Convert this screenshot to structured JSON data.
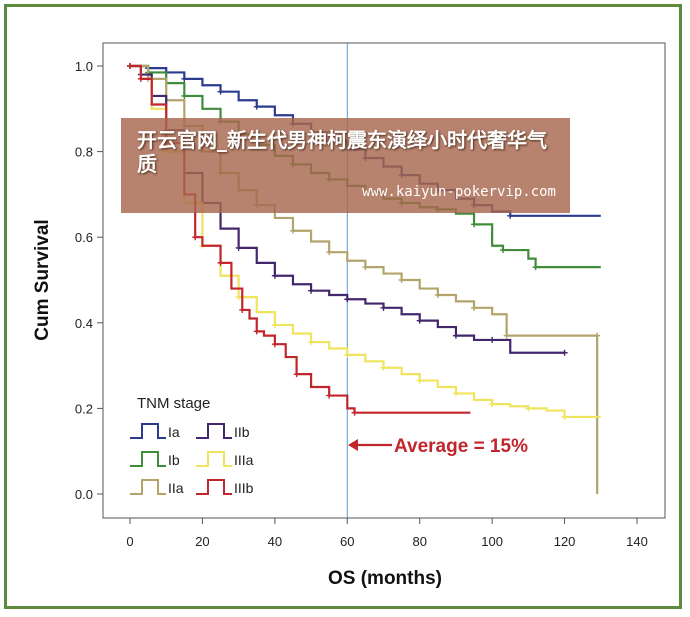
{
  "banner": {
    "title": "开云官网_新生代男神柯震东演绎小时代奢华气质",
    "url": "www.kaiyun-pokervip.com"
  },
  "chart_data": {
    "type": "line",
    "step": true,
    "xlabel": "OS (months)",
    "ylabel": "Cum Survival",
    "xlim": [
      -5,
      145
    ],
    "ylim": [
      0,
      1.0
    ],
    "xticks": [
      0,
      20,
      40,
      60,
      80,
      100,
      120,
      140
    ],
    "yticks": [
      0.0,
      0.2,
      0.4,
      0.6,
      0.8,
      1.0
    ],
    "grid": false,
    "legend": {
      "title": "TNM stage",
      "position": "bottom-left"
    },
    "reference_line": {
      "x": 60,
      "color": "#5b9bd5"
    },
    "annotation": {
      "text": "Average = 15%",
      "x": 60,
      "y": 0.115,
      "color": "#c0262c"
    },
    "series": [
      {
        "name": "Ia",
        "color": "#2b3b8f",
        "points": [
          [
            0,
            1.0
          ],
          [
            5,
            0.995
          ],
          [
            10,
            0.985
          ],
          [
            15,
            0.97
          ],
          [
            20,
            0.955
          ],
          [
            25,
            0.94
          ],
          [
            30,
            0.92
          ],
          [
            35,
            0.905
          ],
          [
            40,
            0.885
          ],
          [
            45,
            0.865
          ],
          [
            50,
            0.845
          ],
          [
            55,
            0.825
          ],
          [
            60,
            0.805
          ],
          [
            65,
            0.785
          ],
          [
            70,
            0.765
          ],
          [
            75,
            0.745
          ],
          [
            80,
            0.725
          ],
          [
            85,
            0.71
          ],
          [
            90,
            0.69
          ],
          [
            95,
            0.675
          ],
          [
            100,
            0.66
          ],
          [
            105,
            0.65
          ],
          [
            130,
            0.65
          ]
        ]
      },
      {
        "name": "Ib",
        "color": "#3f8c3a",
        "points": [
          [
            0,
            1.0
          ],
          [
            5,
            0.985
          ],
          [
            10,
            0.96
          ],
          [
            15,
            0.93
          ],
          [
            20,
            0.9
          ],
          [
            25,
            0.87
          ],
          [
            30,
            0.84
          ],
          [
            35,
            0.815
          ],
          [
            40,
            0.79
          ],
          [
            45,
            0.77
          ],
          [
            50,
            0.75
          ],
          [
            55,
            0.735
          ],
          [
            60,
            0.72
          ],
          [
            65,
            0.705
          ],
          [
            70,
            0.69
          ],
          [
            75,
            0.68
          ],
          [
            80,
            0.67
          ],
          [
            85,
            0.665
          ],
          [
            90,
            0.655
          ],
          [
            95,
            0.63
          ],
          [
            100,
            0.58
          ],
          [
            103,
            0.57
          ],
          [
            110,
            0.55
          ],
          [
            112,
            0.53
          ],
          [
            130,
            0.53
          ]
        ]
      },
      {
        "name": "IIa",
        "color": "#b3a46c",
        "points": [
          [
            0,
            1.0
          ],
          [
            5,
            0.97
          ],
          [
            10,
            0.92
          ],
          [
            15,
            0.86
          ],
          [
            20,
            0.8
          ],
          [
            25,
            0.75
          ],
          [
            30,
            0.71
          ],
          [
            35,
            0.675
          ],
          [
            40,
            0.645
          ],
          [
            45,
            0.615
          ],
          [
            50,
            0.59
          ],
          [
            55,
            0.565
          ],
          [
            60,
            0.545
          ],
          [
            65,
            0.53
          ],
          [
            70,
            0.515
          ],
          [
            75,
            0.5
          ],
          [
            80,
            0.48
          ],
          [
            85,
            0.465
          ],
          [
            90,
            0.45
          ],
          [
            95,
            0.435
          ],
          [
            100,
            0.42
          ],
          [
            104,
            0.37
          ],
          [
            127,
            0.37
          ],
          [
            129,
            0.37
          ],
          [
            129,
            0.0
          ]
        ]
      },
      {
        "name": "IIb",
        "color": "#43276c",
        "points": [
          [
            0,
            1.0
          ],
          [
            3,
            0.98
          ],
          [
            6,
            0.93
          ],
          [
            10,
            0.85
          ],
          [
            15,
            0.75
          ],
          [
            20,
            0.68
          ],
          [
            25,
            0.62
          ],
          [
            30,
            0.575
          ],
          [
            35,
            0.54
          ],
          [
            40,
            0.51
          ],
          [
            45,
            0.49
          ],
          [
            50,
            0.475
          ],
          [
            55,
            0.465
          ],
          [
            60,
            0.455
          ],
          [
            65,
            0.445
          ],
          [
            70,
            0.435
          ],
          [
            75,
            0.42
          ],
          [
            80,
            0.405
          ],
          [
            85,
            0.39
          ],
          [
            90,
            0.37
          ],
          [
            95,
            0.36
          ],
          [
            100,
            0.36
          ],
          [
            105,
            0.33
          ],
          [
            120,
            0.33
          ]
        ]
      },
      {
        "name": "IIIa",
        "color": "#f0e35e",
        "points": [
          [
            0,
            1.0
          ],
          [
            3,
            0.97
          ],
          [
            6,
            0.9
          ],
          [
            10,
            0.8
          ],
          [
            15,
            0.68
          ],
          [
            20,
            0.58
          ],
          [
            25,
            0.51
          ],
          [
            30,
            0.46
          ],
          [
            35,
            0.425
          ],
          [
            40,
            0.395
          ],
          [
            45,
            0.375
          ],
          [
            50,
            0.355
          ],
          [
            55,
            0.34
          ],
          [
            60,
            0.325
          ],
          [
            65,
            0.31
          ],
          [
            70,
            0.295
          ],
          [
            75,
            0.28
          ],
          [
            80,
            0.265
          ],
          [
            85,
            0.25
          ],
          [
            90,
            0.235
          ],
          [
            95,
            0.22
          ],
          [
            100,
            0.21
          ],
          [
            105,
            0.205
          ],
          [
            110,
            0.2
          ],
          [
            115,
            0.195
          ],
          [
            120,
            0.18
          ],
          [
            130,
            0.18
          ]
        ]
      },
      {
        "name": "IIIb",
        "color": "#c0262c",
        "points": [
          [
            0,
            1.0
          ],
          [
            3,
            0.97
          ],
          [
            6,
            0.91
          ],
          [
            10,
            0.82
          ],
          [
            15,
            0.7
          ],
          [
            18,
            0.6
          ],
          [
            20,
            0.58
          ],
          [
            25,
            0.54
          ],
          [
            28,
            0.48
          ],
          [
            31,
            0.43
          ],
          [
            33,
            0.41
          ],
          [
            35,
            0.38
          ],
          [
            37,
            0.37
          ],
          [
            40,
            0.35
          ],
          [
            43,
            0.32
          ],
          [
            46,
            0.28
          ],
          [
            50,
            0.25
          ],
          [
            55,
            0.23
          ],
          [
            60,
            0.2
          ],
          [
            62,
            0.19
          ],
          [
            94,
            0.19
          ]
        ]
      }
    ]
  }
}
